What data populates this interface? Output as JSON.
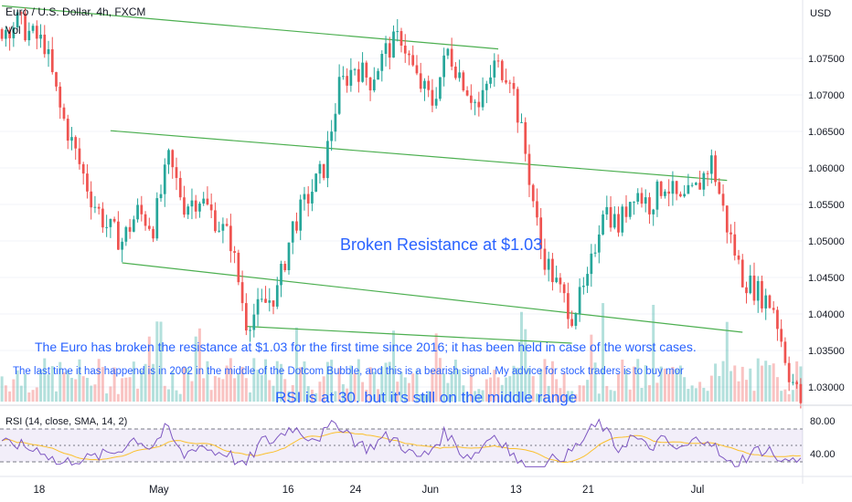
{
  "header": {
    "title": "Euro / U.S. Dollar, 4h, FXCM",
    "volume_label": "Vol",
    "currency": "USD"
  },
  "annotations": {
    "broken_resistance": "Broken Resistance at $1.03",
    "line1": "The Euro has broken the resistance at $1.03 for the first time since 2016; it has been held in case of the worst cases.",
    "line2": "The last time it has happend is in 2002 in the middle of the Dotcom Bubble, and this is a bearish signal. My advice for stock traders is to buy mor",
    "rsi_note": "RSI is at 30. but it's still on the middle range"
  },
  "rsi_panel": {
    "label": "RSI (14, close, SMA, 14, 2)",
    "ticks": [
      "80.00",
      "40.00"
    ]
  },
  "colors": {
    "up": "#26a69a",
    "down": "#ef5350",
    "trendline": "#4caf50",
    "rsi": "#7e57c2",
    "rsi_ma": "#fbc02d",
    "annotation": "#2962ff"
  },
  "chart_data": {
    "type": "candlestick",
    "symbol": "Euro / U.S. Dollar",
    "interval": "4h",
    "y_ticks": [
      "1.07500",
      "1.07000",
      "1.06500",
      "1.06000",
      "1.05500",
      "1.05000",
      "1.04500",
      "1.04000",
      "1.03500",
      "1.03000"
    ],
    "x_ticks": [
      "18",
      "May",
      "16",
      "24",
      "Jun",
      "13",
      "21",
      "Jul"
    ],
    "ylim": [
      1.028,
      1.083
    ],
    "close_path": [
      [
        0,
        1.079
      ],
      [
        4,
        1.08
      ],
      [
        8,
        1.078
      ],
      [
        11,
        1.077
      ],
      [
        15,
        1.068
      ],
      [
        19,
        1.062
      ],
      [
        23,
        1.056
      ],
      [
        27,
        1.052
      ],
      [
        31,
        1.05
      ],
      [
        35,
        1.054
      ],
      [
        39,
        1.052
      ],
      [
        43,
        1.061
      ],
      [
        47,
        1.055
      ],
      [
        51,
        1.056
      ],
      [
        55,
        1.053
      ],
      [
        59,
        1.05
      ],
      [
        63,
        1.039
      ],
      [
        67,
        1.041
      ],
      [
        71,
        1.043
      ],
      [
        75,
        1.052
      ],
      [
        79,
        1.056
      ],
      [
        83,
        1.06
      ],
      [
        87,
        1.071
      ],
      [
        91,
        1.074
      ],
      [
        95,
        1.072
      ],
      [
        99,
        1.076
      ],
      [
        103,
        1.078
      ],
      [
        107,
        1.072
      ],
      [
        111,
        1.069
      ],
      [
        115,
        1.076
      ],
      [
        119,
        1.072
      ],
      [
        123,
        1.068
      ],
      [
        127,
        1.074
      ],
      [
        131,
        1.073
      ],
      [
        135,
        1.062
      ],
      [
        139,
        1.049
      ],
      [
        143,
        1.044
      ],
      [
        147,
        1.04
      ],
      [
        151,
        1.044
      ],
      [
        155,
        1.055
      ],
      [
        159,
        1.052
      ],
      [
        163,
        1.057
      ],
      [
        167,
        1.055
      ],
      [
        171,
        1.058
      ],
      [
        175,
        1.055
      ],
      [
        179,
        1.057
      ],
      [
        183,
        1.061
      ],
      [
        187,
        1.052
      ],
      [
        191,
        1.045
      ],
      [
        195,
        1.043
      ],
      [
        199,
        1.041
      ],
      [
        203,
        1.032
      ],
      [
        206,
        1.028
      ]
    ],
    "trendlines_price_units": [
      {
        "from": [
          0,
          1.0822
        ],
        "to": [
          128,
          1.0763
        ]
      },
      {
        "from": [
          28,
          1.0651
        ],
        "to": [
          187,
          1.0583
        ]
      },
      {
        "from": [
          31,
          1.047
        ],
        "to": [
          191,
          1.0375
        ]
      },
      {
        "from": [
          63,
          1.0383
        ],
        "to": [
          147,
          1.036
        ]
      }
    ],
    "rsi_ylim": [
      20,
      90
    ],
    "rsi_levels": [
      70,
      50,
      30
    ],
    "rsi_last": 30
  }
}
